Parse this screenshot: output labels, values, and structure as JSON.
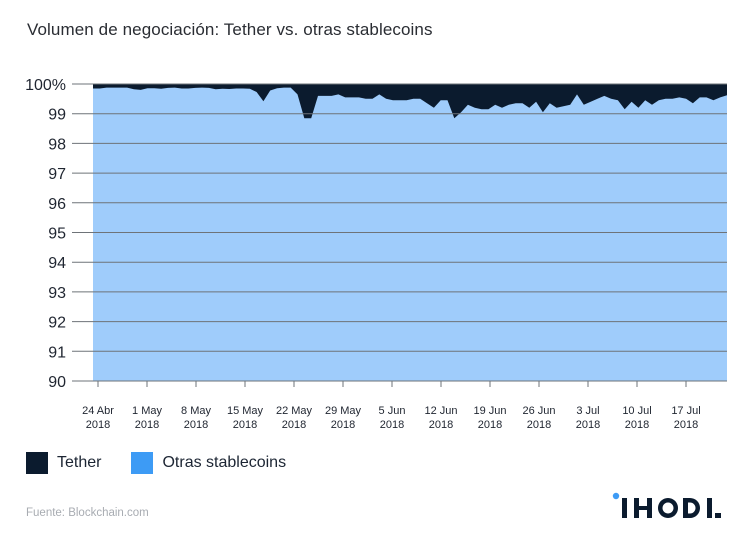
{
  "title": "Volumen de negociación: Tether vs. otras stablecoins",
  "legend": [
    {
      "label": "Tether",
      "color": "#0b1b2e"
    },
    {
      "label": "Otras stablecoins",
      "color": "#3d9bf5"
    }
  ],
  "source": "Fuente: Blockchain.com",
  "logo": {
    "text": "IHODL",
    "dot_color": "#3d9bf5",
    "text_color": "#0b1b2e"
  },
  "colors": {
    "tether_area": "#0b1b2e",
    "others_area": "#9fccfb",
    "grid": "#6e7378",
    "axis_text": "#1f2530"
  },
  "chart_data": {
    "type": "area",
    "stacked": true,
    "percent": true,
    "title": "Volumen de negociación: Tether vs. otras stablecoins",
    "xlabel": "",
    "ylabel": "",
    "ylim": [
      90,
      100
    ],
    "yticks": [
      "90",
      "91",
      "92",
      "93",
      "94",
      "95",
      "96",
      "97",
      "98",
      "99",
      "100%"
    ],
    "xticks": [
      {
        "line1": "24 Abr",
        "line2": "2018"
      },
      {
        "line1": "1 May",
        "line2": "2018"
      },
      {
        "line1": "8 May",
        "line2": "2018"
      },
      {
        "line1": "15 May",
        "line2": "2018"
      },
      {
        "line1": "22 May",
        "line2": "2018"
      },
      {
        "line1": "29 May",
        "line2": "2018"
      },
      {
        "line1": "5 Jun",
        "line2": "2018"
      },
      {
        "line1": "12 Jun",
        "line2": "2018"
      },
      {
        "line1": "19 Jun",
        "line2": "2018"
      },
      {
        "line1": "26 Jun",
        "line2": "2018"
      },
      {
        "line1": "3 Jul",
        "line2": "2018"
      },
      {
        "line1": "10 Jul",
        "line2": "2018"
      },
      {
        "line1": "17 Jul",
        "line2": "2018"
      }
    ],
    "grid": true,
    "legend_position": "bottom-left",
    "x_start": "23 Apr 2018",
    "x_step_days": 1,
    "series": [
      {
        "name": "Otras stablecoins",
        "color": "#9fccfb",
        "values": [
          99.85,
          99.85,
          99.88,
          99.88,
          99.88,
          99.88,
          99.82,
          99.8,
          99.86,
          99.86,
          99.84,
          99.87,
          99.88,
          99.85,
          99.85,
          99.87,
          99.88,
          99.87,
          99.82,
          99.84,
          99.83,
          99.85,
          99.85,
          99.84,
          99.73,
          99.42,
          99.78,
          99.86,
          99.88,
          99.88,
          99.65,
          98.85,
          98.85,
          99.6,
          99.6,
          99.6,
          99.65,
          99.55,
          99.55,
          99.55,
          99.5,
          99.5,
          99.65,
          99.5,
          99.45,
          99.45,
          99.45,
          99.5,
          99.5,
          99.35,
          99.2,
          99.45,
          99.45,
          98.85,
          99.05,
          99.3,
          99.2,
          99.15,
          99.15,
          99.3,
          99.2,
          99.3,
          99.35,
          99.35,
          99.2,
          99.4,
          99.05,
          99.35,
          99.2,
          99.25,
          99.3,
          99.65,
          99.3,
          99.4,
          99.5,
          99.6,
          99.5,
          99.45,
          99.15,
          99.4,
          99.2,
          99.45,
          99.3,
          99.45,
          99.5,
          99.5,
          99.55,
          99.5,
          99.35,
          99.55,
          99.55,
          99.45,
          99.55,
          99.62
        ]
      },
      {
        "name": "Tether",
        "color": "#0b1b2e",
        "values_note": "remainder to 100%"
      }
    ]
  }
}
